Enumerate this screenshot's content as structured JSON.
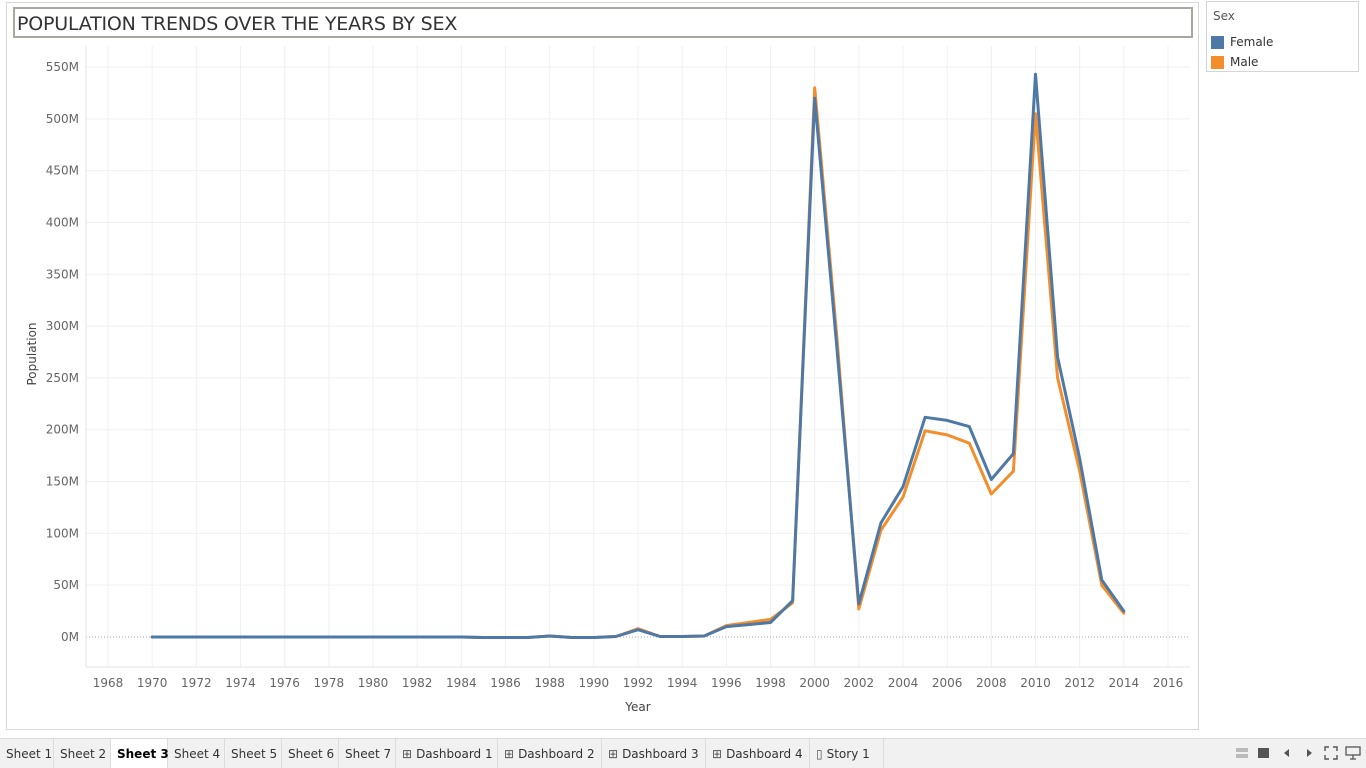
{
  "title": "POPULATION TRENDS OVER THE YEARS BY SEX",
  "legend": {
    "title": "Sex",
    "items": [
      {
        "label": "Female",
        "color": "#4e79a7"
      },
      {
        "label": "Male",
        "color": "#f28e2b"
      }
    ]
  },
  "chart_data": {
    "type": "line",
    "xlabel": "Year",
    "ylabel": "Population",
    "xlim": [
      1967,
      2017
    ],
    "ylim": [
      -28,
      570
    ],
    "x_ticks": [
      1968,
      1970,
      1972,
      1974,
      1976,
      1978,
      1980,
      1982,
      1984,
      1986,
      1988,
      1990,
      1992,
      1994,
      1996,
      1998,
      2000,
      2002,
      2004,
      2006,
      2008,
      2010,
      2012,
      2014,
      2016
    ],
    "y_ticks": [
      0,
      50,
      100,
      150,
      200,
      250,
      300,
      350,
      400,
      450,
      500,
      550
    ],
    "y_tick_labels": [
      "0M",
      "50M",
      "100M",
      "150M",
      "200M",
      "250M",
      "300M",
      "350M",
      "400M",
      "450M",
      "500M",
      "550M"
    ],
    "grid": true,
    "legend_position": "top-right",
    "x": [
      1970,
      1971,
      1972,
      1973,
      1974,
      1975,
      1976,
      1977,
      1978,
      1979,
      1980,
      1981,
      1982,
      1983,
      1984,
      1985,
      1986,
      1987,
      1988,
      1989,
      1990,
      1991,
      1992,
      1993,
      1994,
      1995,
      1996,
      1997,
      1998,
      1999,
      2000,
      2001,
      2002,
      2003,
      2004,
      2005,
      2006,
      2007,
      2008,
      2009,
      2010,
      2011,
      2012,
      2013,
      2014
    ],
    "series": [
      {
        "name": "Male",
        "color": "#f28e2b",
        "values": [
          0,
          0,
          0,
          0,
          0,
          0,
          0,
          0,
          0,
          0,
          0,
          0,
          0,
          0,
          0,
          -0.5,
          -0.5,
          -0.5,
          1,
          -0.5,
          -0.5,
          0.5,
          8,
          0.5,
          0.5,
          1,
          11,
          14,
          17,
          33,
          530,
          290,
          27,
          103,
          135,
          199,
          195,
          187,
          138,
          160,
          505,
          250,
          160,
          50,
          23
        ]
      },
      {
        "name": "Female",
        "color": "#4e79a7",
        "values": [
          0,
          0,
          0,
          0,
          0,
          0,
          0,
          0,
          0,
          0,
          0,
          0,
          0,
          0,
          0,
          -0.5,
          -0.5,
          -0.5,
          1,
          -0.5,
          -0.5,
          0.5,
          7,
          0.5,
          0.5,
          1,
          10,
          12,
          14,
          35,
          520,
          280,
          32,
          110,
          145,
          212,
          209,
          203,
          152,
          177,
          543,
          270,
          172,
          55,
          25
        ]
      }
    ]
  },
  "tabs": [
    {
      "label": "Sheet 1",
      "icon": ""
    },
    {
      "label": "Sheet 2",
      "icon": ""
    },
    {
      "label": "Sheet 3",
      "icon": "",
      "active": true
    },
    {
      "label": "Sheet 4",
      "icon": ""
    },
    {
      "label": "Sheet 5",
      "icon": ""
    },
    {
      "label": "Sheet 6",
      "icon": ""
    },
    {
      "label": "Sheet 7",
      "icon": ""
    },
    {
      "label": "Dashboard 1",
      "icon": "dashboard-icon"
    },
    {
      "label": "Dashboard 2",
      "icon": "dashboard-icon"
    },
    {
      "label": "Dashboard 3",
      "icon": "dashboard-icon"
    },
    {
      "label": "Dashboard 4",
      "icon": "dashboard-icon"
    },
    {
      "label": "Story 1",
      "icon": "story-icon"
    }
  ],
  "controls": [
    "show-filmstrip-icon",
    "show-tabs-icon",
    "previous-sheet-icon",
    "next-sheet-icon",
    "fit-to-window-icon",
    "presentation-mode-icon"
  ]
}
